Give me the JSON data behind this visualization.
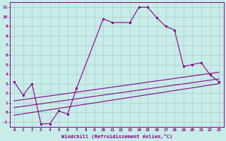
{
  "xlabel": "Windchill (Refroidissement éolien,°C)",
  "background_color": "#c8ece8",
  "grid_color": "#aacccc",
  "line_color": "#880088",
  "xlim": [
    -0.5,
    23.5
  ],
  "ylim": [
    -1.5,
    11.5
  ],
  "xticks": [
    0,
    1,
    2,
    3,
    4,
    5,
    6,
    7,
    8,
    9,
    10,
    11,
    12,
    13,
    14,
    15,
    16,
    17,
    18,
    19,
    20,
    21,
    22,
    23
  ],
  "yticks": [
    -1,
    0,
    1,
    2,
    3,
    4,
    5,
    6,
    7,
    8,
    9,
    10,
    11
  ],
  "series1_x": [
    0,
    1,
    2,
    3,
    4,
    5,
    6,
    7,
    10,
    11,
    13,
    14,
    15,
    16,
    17,
    18,
    19,
    20,
    21,
    22,
    23
  ],
  "series1_y": [
    3.2,
    1.8,
    3.0,
    -1.2,
    -1.2,
    0.15,
    -0.2,
    2.5,
    9.8,
    9.4,
    9.4,
    11.0,
    11.0,
    9.9,
    9.0,
    8.6,
    4.8,
    5.0,
    5.2,
    3.9,
    3.2
  ],
  "series2_x": [
    0,
    23
  ],
  "series2_y": [
    -0.3,
    3.0
  ],
  "series3_x": [
    0,
    23
  ],
  "series3_y": [
    0.5,
    3.5
  ],
  "series4_x": [
    0,
    23
  ],
  "series4_y": [
    1.2,
    4.2
  ]
}
